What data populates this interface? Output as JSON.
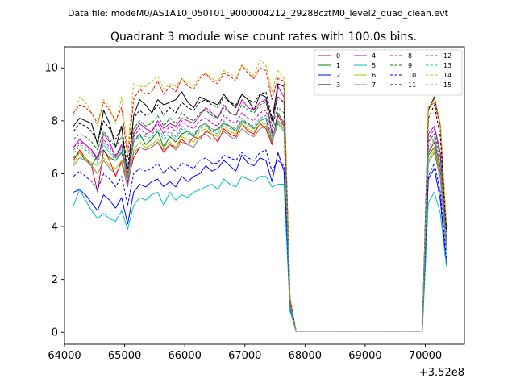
{
  "header": {
    "data_file_text": "Data file: modeM0/AS1A10_050T01_9000004212_29288cztM0_level2_quad_clean.evt"
  },
  "chart_data": {
    "type": "line",
    "title": "Quadrant 3 module wise count rates with 100.0s bins.",
    "xlabel": "",
    "ylabel": "",
    "x_offset_label": "+3.52e8",
    "xlim": [
      64000,
      70650
    ],
    "ylim": [
      -0.45,
      10.8
    ],
    "x_ticks": [
      64000,
      65000,
      66000,
      67000,
      68000,
      69000,
      70000
    ],
    "x_tick_labels": [
      "64000",
      "65000",
      "66000",
      "67000",
      "68000",
      "69000",
      "70000"
    ],
    "y_ticks": [
      0,
      2,
      4,
      6,
      8,
      10
    ],
    "y_tick_labels": [
      "0",
      "2",
      "4",
      "6",
      "8",
      "10"
    ],
    "grid": false,
    "legend_position": "top-right",
    "segments": {
      "seg1_x": [
        64150,
        64250,
        64350,
        64450,
        64550,
        64650,
        64750,
        64850,
        64950,
        65050,
        65150,
        65250,
        65350,
        65450,
        65550,
        65650,
        65750,
        65850,
        65950,
        66050,
        66150,
        66250,
        66350,
        66450,
        66550,
        66650,
        66750,
        66850,
        66950,
        67050,
        67150,
        67250,
        67350,
        67450,
        67550,
        67650,
        67750,
        67850
      ],
      "seg2_x": [
        69950,
        70050,
        70150,
        70250,
        70350
      ]
    },
    "series": [
      {
        "name": "0",
        "color": "#ff0000",
        "dash": "solid",
        "values": [
          6.5,
          6.9,
          6.6,
          6.3,
          5.3,
          6.9,
          6.5,
          5.9,
          6.5,
          5.7,
          6.6,
          7.0,
          6.9,
          7.0,
          7.2,
          6.8,
          7.1,
          7.0,
          7.3,
          7.1,
          7.4,
          7.3,
          7.6,
          7.5,
          7.2,
          7.7,
          7.5,
          7.4,
          7.9,
          7.6,
          7.5,
          7.9,
          7.7,
          7.1,
          8.2,
          7.8,
          1.2,
          0.05
        ],
        "values2": [
          0.05,
          6.8,
          7.2,
          6.2,
          3.4
        ]
      },
      {
        "name": "1",
        "color": "#008000",
        "dash": "solid",
        "values": [
          6.6,
          6.8,
          6.5,
          6.3,
          6.7,
          6.9,
          6.6,
          6.5,
          6.8,
          5.9,
          7.2,
          7.5,
          7.1,
          7.3,
          7.6,
          7.0,
          7.4,
          7.2,
          7.5,
          7.6,
          7.4,
          7.8,
          7.9,
          7.6,
          7.7,
          7.9,
          7.8,
          7.6,
          8.0,
          7.9,
          7.7,
          8.0,
          8.1,
          7.2,
          8.3,
          7.9,
          1.1,
          0.05
        ],
        "values2": [
          0.05,
          6.7,
          7.0,
          6.0,
          3.3
        ]
      },
      {
        "name": "2",
        "color": "#0000ff",
        "dash": "solid",
        "values": [
          5.3,
          5.4,
          5.2,
          4.9,
          4.6,
          5.2,
          5.0,
          4.7,
          5.1,
          4.1,
          5.3,
          5.6,
          5.5,
          5.7,
          5.8,
          5.5,
          5.7,
          5.5,
          5.9,
          5.7,
          5.9,
          6.0,
          6.3,
          6.1,
          6.2,
          6.5,
          6.3,
          6.1,
          6.7,
          6.4,
          6.3,
          6.6,
          6.5,
          5.7,
          6.8,
          6.1,
          0.9,
          0.05
        ],
        "values2": [
          0.05,
          5.8,
          6.2,
          5.0,
          2.6
        ]
      },
      {
        "name": "3",
        "color": "#000000",
        "dash": "solid",
        "values": [
          7.8,
          8.1,
          8.0,
          7.9,
          7.1,
          8.4,
          7.9,
          7.0,
          7.8,
          5.8,
          8.2,
          8.8,
          8.6,
          8.3,
          8.8,
          8.6,
          8.7,
          8.8,
          9.1,
          8.7,
          8.5,
          8.9,
          8.8,
          8.7,
          8.6,
          9.0,
          8.7,
          8.5,
          9.0,
          8.8,
          8.4,
          9.0,
          8.9,
          8.0,
          9.4,
          9.3,
          1.3,
          0.05
        ],
        "values2": [
          0.05,
          8.4,
          8.9,
          7.8,
          3.9
        ]
      },
      {
        "name": "4",
        "color": "#bf00bf",
        "dash": "solid",
        "values": [
          7.0,
          7.3,
          7.1,
          6.9,
          6.5,
          7.5,
          7.2,
          6.6,
          7.1,
          5.6,
          7.5,
          7.9,
          7.7,
          7.6,
          8.0,
          7.7,
          7.9,
          7.8,
          8.1,
          8.0,
          7.9,
          8.2,
          8.5,
          8.3,
          8.1,
          8.6,
          8.3,
          8.2,
          8.8,
          8.5,
          8.4,
          8.7,
          8.8,
          7.5,
          9.3,
          8.9,
          1.2,
          0.05
        ],
        "values2": [
          0.05,
          7.5,
          7.8,
          6.8,
          3.5
        ]
      },
      {
        "name": "5",
        "color": "#00bfbf",
        "dash": "solid",
        "values": [
          4.8,
          5.4,
          5.0,
          4.6,
          4.3,
          4.5,
          4.3,
          4.2,
          4.6,
          3.9,
          4.8,
          5.1,
          5.0,
          5.2,
          5.3,
          4.8,
          5.3,
          5.0,
          5.2,
          5.1,
          5.3,
          5.4,
          5.5,
          5.6,
          5.4,
          5.8,
          5.6,
          5.5,
          5.9,
          5.8,
          5.7,
          5.9,
          5.9,
          5.5,
          5.6,
          5.6,
          0.8,
          0.05
        ],
        "values2": [
          0.05,
          4.9,
          5.3,
          4.5,
          2.5
        ]
      },
      {
        "name": "6",
        "color": "#bfbf00",
        "dash": "solid",
        "values": [
          6.4,
          6.8,
          6.6,
          6.4,
          6.3,
          6.6,
          6.3,
          6.2,
          6.5,
          5.8,
          6.9,
          7.2,
          7.0,
          7.1,
          7.3,
          7.0,
          7.2,
          7.0,
          7.4,
          7.3,
          7.2,
          7.6,
          7.7,
          7.5,
          7.4,
          7.8,
          7.6,
          7.5,
          7.9,
          7.7,
          7.6,
          7.9,
          7.9,
          7.3,
          8.0,
          7.7,
          1.0,
          0.05
        ],
        "values2": [
          0.05,
          6.5,
          6.9,
          5.9,
          3.2
        ]
      },
      {
        "name": "7",
        "color": "#808080",
        "dash": "solid",
        "values": [
          6.3,
          6.6,
          6.5,
          6.3,
          6.0,
          6.5,
          6.2,
          6.0,
          6.4,
          5.5,
          6.8,
          7.0,
          6.9,
          7.0,
          7.2,
          6.9,
          7.1,
          6.9,
          7.2,
          7.1,
          7.0,
          7.4,
          7.5,
          7.3,
          7.3,
          7.6,
          7.4,
          7.3,
          7.7,
          7.5,
          7.4,
          7.7,
          7.8,
          7.2,
          7.9,
          7.6,
          1.0,
          0.05
        ],
        "values2": [
          0.05,
          6.4,
          6.8,
          5.8,
          3.1
        ]
      },
      {
        "name": "8",
        "color": "#ff0000",
        "dash": "dashed",
        "values": [
          8.3,
          8.6,
          8.5,
          8.3,
          7.9,
          8.7,
          8.4,
          8.0,
          8.5,
          6.6,
          8.8,
          9.2,
          9.0,
          9.1,
          9.5,
          9.0,
          9.3,
          9.1,
          9.6,
          9.3,
          9.2,
          9.6,
          9.8,
          9.5,
          9.4,
          9.8,
          9.7,
          9.5,
          10.1,
          9.8,
          9.6,
          10.0,
          9.9,
          8.8,
          9.6,
          9.5,
          1.3,
          0.05
        ],
        "values2": [
          0.05,
          8.5,
          8.7,
          7.8,
          4.0
        ]
      },
      {
        "name": "9",
        "color": "#008000",
        "dash": "dashed",
        "values": [
          7.3,
          7.5,
          7.4,
          7.2,
          6.9,
          7.6,
          7.3,
          7.0,
          7.4,
          6.2,
          7.7,
          8.0,
          7.8,
          7.9,
          8.2,
          7.8,
          8.1,
          7.9,
          8.3,
          8.1,
          8.0,
          8.3,
          8.4,
          8.2,
          8.1,
          8.5,
          8.3,
          8.2,
          8.6,
          8.4,
          8.3,
          8.6,
          8.7,
          7.8,
          8.5,
          8.3,
          1.1,
          0.05
        ],
        "values2": [
          0.05,
          7.2,
          7.5,
          6.6,
          3.5
        ]
      },
      {
        "name": "10",
        "color": "#0000ff",
        "dash": "dashed",
        "values": [
          5.9,
          6.1,
          5.9,
          5.7,
          5.4,
          6.0,
          5.8,
          5.5,
          5.9,
          4.8,
          6.0,
          6.2,
          6.1,
          6.2,
          6.4,
          6.0,
          6.3,
          6.1,
          6.4,
          6.3,
          6.2,
          6.5,
          6.6,
          6.4,
          6.4,
          6.7,
          6.6,
          6.5,
          6.8,
          6.6,
          6.5,
          6.8,
          6.9,
          6.1,
          6.5,
          6.3,
          1.0,
          0.05
        ],
        "values2": [
          0.05,
          5.9,
          6.4,
          5.3,
          2.8
        ]
      },
      {
        "name": "11",
        "color": "#000000",
        "dash": "dashed",
        "values": [
          7.6,
          7.9,
          7.8,
          7.6,
          7.2,
          8.0,
          7.7,
          7.3,
          7.8,
          6.2,
          8.1,
          8.4,
          8.2,
          8.3,
          8.6,
          8.2,
          8.5,
          8.3,
          8.7,
          8.5,
          8.4,
          8.7,
          8.8,
          8.6,
          8.5,
          8.9,
          8.7,
          8.6,
          9.0,
          8.8,
          8.7,
          9.0,
          9.1,
          8.1,
          8.9,
          8.7,
          1.2,
          0.05
        ],
        "values2": [
          0.05,
          8.1,
          8.6,
          7.4,
          3.8
        ]
      },
      {
        "name": "12",
        "color": "#bf00bf",
        "dash": "dashed",
        "values": [
          7.0,
          7.2,
          7.1,
          6.9,
          6.6,
          7.3,
          7.0,
          6.7,
          7.1,
          6.0,
          7.4,
          7.7,
          7.5,
          7.6,
          7.9,
          7.5,
          7.8,
          7.6,
          8.0,
          7.8,
          7.7,
          8.0,
          8.1,
          7.9,
          7.8,
          8.2,
          8.0,
          7.9,
          8.3,
          8.1,
          8.0,
          8.3,
          8.4,
          7.6,
          8.2,
          8.0,
          1.1,
          0.05
        ],
        "values2": [
          0.05,
          7.3,
          7.7,
          6.7,
          3.5
        ]
      },
      {
        "name": "13",
        "color": "#00bfbf",
        "dash": "dashed",
        "values": [
          6.8,
          7.0,
          6.9,
          6.7,
          6.4,
          7.1,
          6.8,
          6.5,
          6.9,
          5.8,
          7.2,
          7.4,
          7.3,
          7.4,
          7.6,
          7.3,
          7.5,
          7.3,
          7.7,
          7.5,
          7.4,
          7.7,
          7.8,
          7.6,
          7.5,
          7.9,
          7.7,
          7.6,
          8.0,
          7.8,
          7.7,
          8.0,
          8.1,
          7.3,
          7.9,
          7.7,
          1.0,
          0.05
        ],
        "values2": [
          0.05,
          6.9,
          7.3,
          6.3,
          3.3
        ]
      },
      {
        "name": "14",
        "color": "#bfbf00",
        "dash": "dashed",
        "values": [
          8.2,
          8.9,
          8.7,
          8.3,
          7.8,
          8.8,
          8.5,
          7.9,
          8.9,
          6.9,
          9.4,
          9.3,
          9.3,
          9.5,
          9.7,
          9.2,
          9.4,
          9.3,
          9.6,
          9.4,
          9.3,
          9.7,
          9.8,
          9.6,
          9.5,
          9.9,
          9.8,
          9.6,
          10.1,
          9.9,
          9.7,
          10.3,
          10.1,
          9.1,
          9.9,
          9.6,
          1.3,
          0.05
        ],
        "values2": [
          0.05,
          8.5,
          8.8,
          7.9,
          4.1
        ]
      },
      {
        "name": "15",
        "color": "#808080",
        "dash": "dashed",
        "values": [
          6.9,
          7.1,
          7.0,
          6.8,
          6.5,
          7.2,
          6.9,
          6.6,
          7.0,
          5.9,
          7.3,
          7.5,
          7.4,
          7.5,
          7.7,
          7.4,
          7.6,
          7.4,
          7.8,
          7.6,
          7.5,
          7.8,
          7.9,
          7.7,
          7.6,
          8.0,
          7.8,
          7.7,
          8.1,
          7.9,
          7.8,
          8.1,
          8.2,
          7.4,
          8.0,
          7.8,
          1.0,
          0.05
        ],
        "values2": [
          0.05,
          7.0,
          7.4,
          6.4,
          3.4
        ]
      }
    ]
  }
}
